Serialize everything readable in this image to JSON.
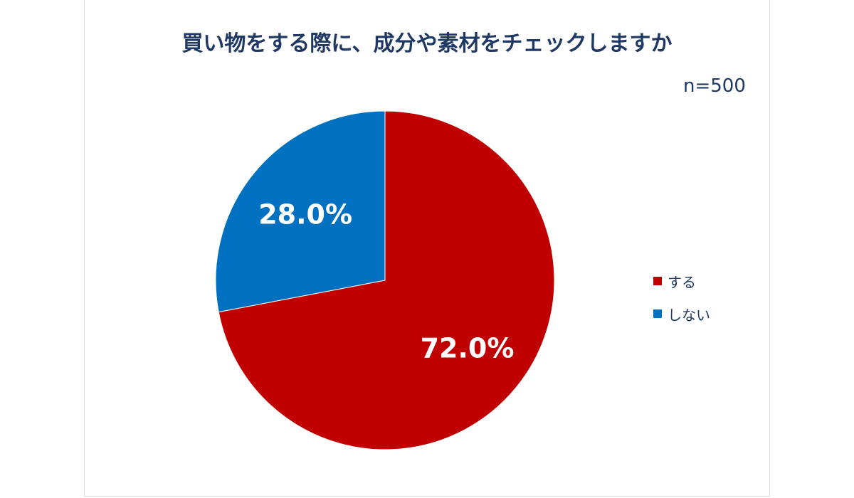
{
  "chart_data": {
    "type": "pie",
    "title": "買い物をする際に、成分や素材をチェックしますか",
    "sample_size": "n=500",
    "categories": [
      "する",
      "しない"
    ],
    "values": [
      72.0,
      28.0
    ],
    "value_labels": [
      "72.0%",
      "28.0%"
    ],
    "colors": [
      "#c00000",
      "#0070c0"
    ],
    "legend_position": "right",
    "start_direction": "top",
    "direction": "clockwise"
  }
}
